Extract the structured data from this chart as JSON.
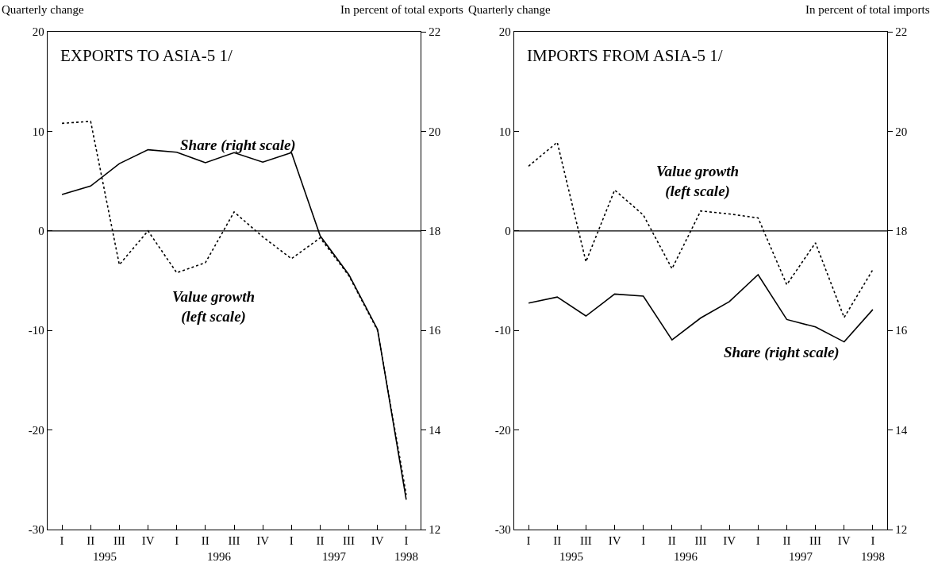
{
  "chart_data": [
    {
      "type": "line",
      "title": "EXPORTS TO ASIA-5 1/",
      "ylabel": "Quarterly change",
      "y2label": "In percent of total exports",
      "categories": [
        "I",
        "II",
        "III",
        "IV",
        "I",
        "II",
        "III",
        "IV",
        "I",
        "II",
        "III",
        "IV",
        "I"
      ],
      "series": [
        {
          "color": "#000000",
          "line_style": "dotted",
          "values": [
            10.8,
            11.0,
            -3.4,
            0,
            -4.2,
            -3.2,
            1.9,
            -0.6,
            -2.8,
            -0.7,
            -4.5,
            -10,
            -26.5
          ]
        },
        {
          "color": "#000000",
          "line_style": "solid",
          "axis": "y2",
          "values": [
            18.73,
            18.9,
            19.35,
            19.63,
            19.58,
            19.37,
            19.57,
            19.38,
            19.57,
            17.9,
            17.12,
            16.02,
            12.6
          ]
        }
      ],
      "ylim": [
        -30,
        20
      ],
      "yticks": [
        -30,
        -20,
        -10,
        0,
        10,
        20
      ],
      "y2lim": [
        12,
        22
      ],
      "y2ticks": [
        12,
        14,
        16,
        18,
        20,
        22
      ],
      "ref_lines": [
        {
          "axis": "y",
          "value": 0,
          "color": "#000000"
        }
      ],
      "annotations": [
        "Share (right scale)",
        "Value growth\n(left scale)",
        "1995",
        "1996",
        "1997",
        "1998"
      ],
      "grid": false,
      "marker": "none"
    },
    {
      "type": "line",
      "title": "IMPORTS FROM ASIA-5 1/",
      "ylabel": "Quarterly change",
      "y2label": "In percent of total imports",
      "categories": [
        "I",
        "II",
        "III",
        "IV",
        "I",
        "II",
        "III",
        "IV",
        "I",
        "II",
        "III",
        "IV",
        "I"
      ],
      "series": [
        {
          "color": "#000000",
          "line_style": "dotted",
          "values": [
            6.5,
            8.9,
            -3.1,
            4.1,
            1.6,
            -3.8,
            2.0,
            1.7,
            1.3,
            -5.4,
            -1.2,
            -8.7,
            -3.9
          ]
        },
        {
          "color": "#000000",
          "line_style": "solid",
          "axis": "y2",
          "values": [
            16.55,
            16.67,
            16.29,
            16.73,
            16.69,
            15.81,
            16.25,
            16.58,
            17.12,
            16.22,
            16.07,
            15.77,
            16.42
          ]
        }
      ],
      "ylim": [
        -30,
        20
      ],
      "yticks": [
        -30,
        -20,
        -10,
        0,
        10,
        20
      ],
      "y2lim": [
        12,
        22
      ],
      "y2ticks": [
        12,
        14,
        16,
        18,
        20,
        22
      ],
      "ref_lines": [
        {
          "axis": "y",
          "value": 0,
          "color": "#000000"
        }
      ],
      "annotations": [
        "Value growth\n(left scale)",
        "Share (right scale)",
        "1995",
        "1996",
        "1997",
        "1998"
      ],
      "grid": false,
      "marker": "none"
    }
  ]
}
